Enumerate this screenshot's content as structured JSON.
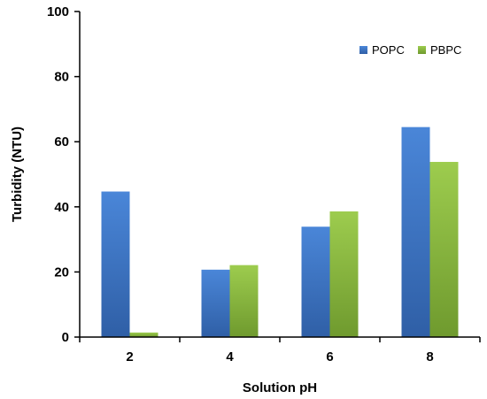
{
  "chart_data": {
    "type": "bar",
    "title": "",
    "xlabel": "Solution pH",
    "ylabel": "Turbidity (NTU)",
    "categories": [
      "2",
      "4",
      "6",
      "8"
    ],
    "ylim": [
      0,
      100
    ],
    "yticks": [
      "0",
      "20",
      "40",
      "60",
      "80",
      "100"
    ],
    "grid": false,
    "legend_position": "top-right",
    "series": [
      {
        "name": "POPC",
        "color": "#3a72c0",
        "values": [
          44.7,
          20.7,
          33.9,
          64.5
        ]
      },
      {
        "name": "PBPC",
        "color": "#8db83f",
        "values": [
          1.4,
          22.1,
          38.6,
          53.8
        ]
      }
    ]
  }
}
